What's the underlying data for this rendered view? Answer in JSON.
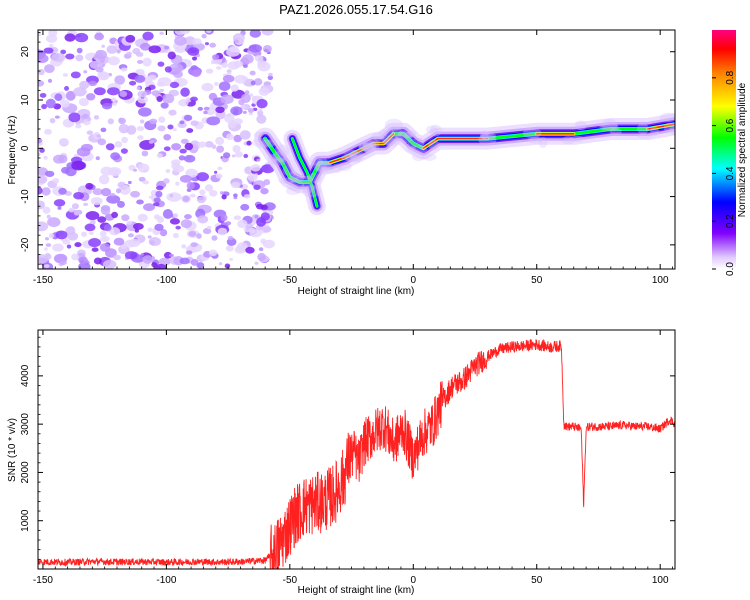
{
  "title": "PAZ1.2026.055.17.54.G16",
  "chart_data": [
    {
      "type": "heatmap",
      "xlabel": "Height of straight line (km)",
      "ylabel": "Frequency (Hz)",
      "xlim": [
        -152,
        106
      ],
      "ylim": [
        -25,
        24.5
      ],
      "x_ticks": [
        -150,
        -100,
        -50,
        0,
        50,
        100
      ],
      "y_ticks": [
        -20,
        -10,
        0,
        10,
        20
      ],
      "noise_region": {
        "x_range": [
          -152,
          -60
        ],
        "y_range": [
          -25,
          24.5
        ]
      },
      "ridge": [
        {
          "x": -60,
          "y": 2
        },
        {
          "x": -56,
          "y": -1
        },
        {
          "x": -53,
          "y": -3
        },
        {
          "x": -50,
          "y": -6
        },
        {
          "x": -46,
          "y": -7
        },
        {
          "x": -42,
          "y": -7
        },
        {
          "x": -38,
          "y": -3
        },
        {
          "x": -34,
          "y": -3
        },
        {
          "x": -28,
          "y": -2
        },
        {
          "x": -24,
          "y": -1
        },
        {
          "x": -20,
          "y": 0
        },
        {
          "x": -16,
          "y": 1
        },
        {
          "x": -12,
          "y": 1
        },
        {
          "x": -8,
          "y": 3
        },
        {
          "x": -4,
          "y": 3
        },
        {
          "x": 0,
          "y": 1
        },
        {
          "x": 4,
          "y": 0
        },
        {
          "x": 10,
          "y": 2
        },
        {
          "x": 30,
          "y": 2
        },
        {
          "x": 50,
          "y": 3
        },
        {
          "x": 65,
          "y": 3
        },
        {
          "x": 80,
          "y": 4
        },
        {
          "x": 95,
          "y": 4
        },
        {
          "x": 106,
          "y": 5
        }
      ],
      "side_branch": [
        {
          "x": -49,
          "y": 2
        },
        {
          "x": -46,
          "y": -2
        },
        {
          "x": -43,
          "y": -5
        },
        {
          "x": -41,
          "y": -8
        },
        {
          "x": -39,
          "y": -12
        }
      ],
      "colorbar": {
        "label": "Normalized spectral amplitude",
        "range": [
          0,
          1
        ],
        "ticks": [
          "0.0",
          "0.2",
          "0.4",
          "0.6",
          "0.8"
        ],
        "tick_values": [
          0,
          0.2,
          0.4,
          0.6,
          0.8
        ]
      }
    },
    {
      "type": "line",
      "xlabel": "Height of straight line (km)",
      "ylabel": "SNR (10 * v/v)",
      "xlim": [
        -152,
        106
      ],
      "ylim": [
        0,
        4950
      ],
      "x_ticks": [
        -150,
        -100,
        -50,
        0,
        50,
        100
      ],
      "y_ticks": [
        1000,
        2000,
        3000,
        4000
      ],
      "color": "#ff2020",
      "series": [
        {
          "name": "SNR",
          "x": [
            -152,
            -140,
            -130,
            -120,
            -110,
            -100,
            -90,
            -80,
            -70,
            -60,
            -56,
            -52,
            -48,
            -44,
            -40,
            -36,
            -32,
            -28,
            -26,
            -24,
            -22,
            -20,
            -16,
            -12,
            -8,
            -4,
            0,
            4,
            8,
            12,
            16,
            20,
            25,
            30,
            35,
            40,
            45,
            50,
            55,
            60,
            61,
            62,
            65,
            68,
            69,
            70,
            71,
            75,
            80,
            85,
            90,
            95,
            100,
            104,
            106
          ],
          "y": [
            150,
            140,
            155,
            145,
            150,
            140,
            150,
            145,
            150,
            180,
            350,
            700,
            1100,
            1300,
            1350,
            1400,
            1550,
            1900,
            2300,
            2400,
            2200,
            2600,
            2800,
            3000,
            2600,
            2900,
            2300,
            2800,
            3000,
            3500,
            3800,
            3900,
            4200,
            4400,
            4550,
            4600,
            4620,
            4650,
            4600,
            4620,
            3000,
            2950,
            2950,
            2900,
            1300,
            2900,
            2950,
            2950,
            2950,
            2980,
            2950,
            2950,
            2900,
            3100,
            3000
          ]
        }
      ]
    }
  ]
}
